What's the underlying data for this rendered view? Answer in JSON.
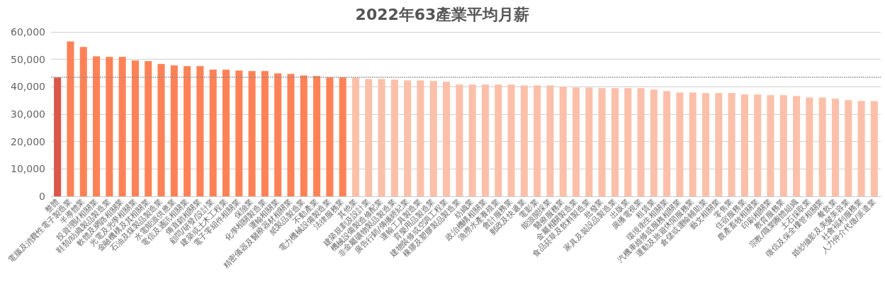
{
  "chart_data": {
    "type": "bar",
    "title": "2022年63產業平均月薪",
    "categories": [
      "整體",
      "電腦及消費性電子製造業",
      "半導體業",
      "投資理財相關業",
      "鞋類/紡織製品製造業",
      "軟體及網路相關業",
      "光電及光學相關業",
      "金融機構及其相關業",
      "石油及煤製品製造業",
      "水電能源供應業",
      "電信及通訊相關業",
      "傳直銷相關業",
      "顧問/研發/設計業",
      "建築或土木工程業",
      "電子零組件相關業",
      "保險業",
      "化學相關製造業",
      "運輸相關業",
      "精密儀器及醫療器材相關業",
      "紙製品製造業",
      "不動產業",
      "電力機械設備製造業",
      "法律服務業",
      "其他業",
      "建築規劃及設計業",
      "機械設備製造修配業",
      "非金屬礦物製品製造業",
      "廣告行銷/傳播經紀業",
      "運輸工具製造業",
      "育樂用品製造業",
      "建物裝修或空調工程業",
      "橡膠及塑膠製品製造業",
      "紡織業",
      "政治機構相關業",
      "漁撈水產養殖業",
      "會計服務業",
      "郵政及快遞業",
      "電影業",
      "能源開採業",
      "醫療服務業",
      "金屬相關製造業",
      "食品菸草及飲料製造業",
      "批發業",
      "家具及裝設品製造業",
      "出版業",
      "廣播電視業",
      "租賃業",
      "環境衛生相關業",
      "汽機車維修或服務相關業",
      "運動及旅遊休閒服務業",
      "倉儲或運輸輔助業",
      "藝文相關業",
      "零售業",
      "住宿服務業",
      "農產畜牧相關業",
      "印刷相關業",
      "教育服務業",
      "宗教/職業團體組織",
      "土石採取業",
      "徵信及保全樓管相關業",
      "餐飲業",
      "婚紗攝影及美髮美容業",
      "社會福利服務業",
      "人力仲介代徵/派遣業"
    ],
    "values": [
      43400,
      56500,
      54500,
      51100,
      50900,
      50900,
      49600,
      49300,
      48300,
      47800,
      47500,
      47500,
      46200,
      46200,
      45900,
      45700,
      45700,
      44900,
      44700,
      44100,
      43900,
      43400,
      43400,
      43300,
      42800,
      42800,
      42600,
      42300,
      42300,
      42100,
      41800,
      40800,
      40800,
      40800,
      40800,
      40800,
      40500,
      40500,
      40500,
      40000,
      39700,
      39700,
      39500,
      39500,
      39500,
      39500,
      39000,
      38400,
      37900,
      37900,
      37700,
      37700,
      37700,
      37200,
      37200,
      36900,
      36900,
      36600,
      36100,
      36100,
      35600,
      35100,
      34800,
      34800
    ],
    "colors": [
      "#d9584a",
      "#ff8257",
      "#ff8257",
      "#ff8257",
      "#ff8257",
      "#ff8257",
      "#ff8257",
      "#ff8257",
      "#ff8257",
      "#ff8257",
      "#ff8257",
      "#ff8257",
      "#ff8257",
      "#ff8257",
      "#ff8257",
      "#ff8257",
      "#ff8257",
      "#ff8257",
      "#ff8257",
      "#ff8257",
      "#ff8257",
      "#ff8257",
      "#ff8257",
      "#fcc0aa",
      "#fcc0aa",
      "#fcc0aa",
      "#fcc0aa",
      "#fcc0aa",
      "#fcc0aa",
      "#fcc0aa",
      "#fcc0aa",
      "#fcc0aa",
      "#fcc0aa",
      "#fcc0aa",
      "#fcc0aa",
      "#fcc0aa",
      "#fcc0aa",
      "#fcc0aa",
      "#fcc0aa",
      "#fcc0aa",
      "#fcc0aa",
      "#fcc0aa",
      "#fcc0aa",
      "#fcc0aa",
      "#fcc0aa",
      "#fcc0aa",
      "#fcc0aa",
      "#fcc0aa",
      "#fcc0aa",
      "#fcc0aa",
      "#fcc0aa",
      "#fcc0aa",
      "#fcc0aa",
      "#fcc0aa",
      "#fcc0aa",
      "#fcc0aa",
      "#fcc0aa",
      "#fcc0aa",
      "#fcc0aa",
      "#fcc0aa",
      "#fcc0aa",
      "#fcc0aa",
      "#fcc0aa",
      "#fcc0aa"
    ],
    "ylim": [
      0,
      60000
    ],
    "yticks": [
      0,
      {
        "value": 10000,
        "label": "10,000"
      },
      {
        "value": 20000,
        "label": "20,000"
      },
      {
        "value": 30000,
        "label": "30,000"
      },
      {
        "value": 40000,
        "label": "40,000"
      },
      {
        "value": 50000,
        "label": "50,000"
      },
      {
        "value": 60000,
        "label": "60,000"
      }
    ],
    "grid": "y",
    "ref_lines": [
      {
        "axis": "y",
        "value": 43400,
        "color": "#888888",
        "line_style": "dotted"
      }
    ]
  }
}
